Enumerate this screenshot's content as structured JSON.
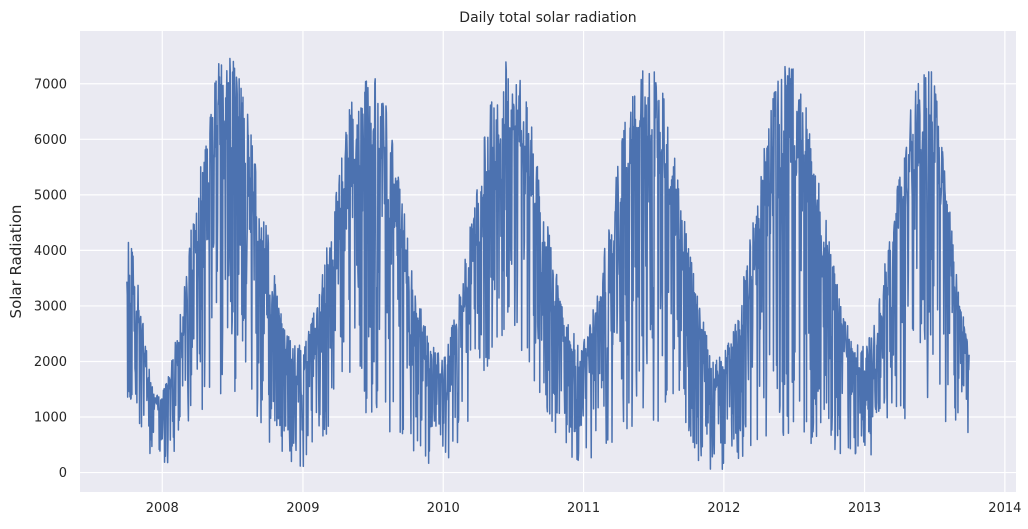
{
  "chart_data": {
    "type": "line",
    "title": "Daily total solar radiation",
    "xlabel": "",
    "ylabel": "Solar Radiation",
    "xlim": [
      "2007-06-01",
      "2014-01-30"
    ],
    "ylim": [
      -350,
      7950
    ],
    "x_ticks": [
      "2008",
      "2009",
      "2010",
      "2011",
      "2012",
      "2013",
      "2014"
    ],
    "y_ticks": [
      0,
      1000,
      2000,
      3000,
      4000,
      5000,
      6000,
      7000
    ],
    "grid": true,
    "legend": "none",
    "series": [
      {
        "name": "",
        "color": "#4c72b0",
        "x_start": "2007-10-01",
        "x_end": "2013-09-30",
        "sampling": "daily",
        "seasonal_envelope": {
          "x": [
            "2007-10-01",
            "2007-12-20",
            "2008-06-15",
            "2008-12-20",
            "2009-06-20",
            "2009-12-20",
            "2010-06-20",
            "2010-12-20",
            "2011-06-15",
            "2011-12-20",
            "2012-06-15",
            "2012-12-20",
            "2013-06-15",
            "2013-09-30"
          ],
          "upper": [
            4200,
            1400,
            7550,
            2300,
            7400,
            2200,
            7450,
            2500,
            7500,
            2100,
            7350,
            2300,
            7300,
            2600
          ],
          "lower": [
            1300,
            100,
            1400,
            100,
            900,
            100,
            2200,
            200,
            900,
            0,
            600,
            200,
            1100,
            500
          ]
        }
      }
    ]
  },
  "colors": {
    "background": "#ffffff",
    "plot_area": "#eaeaf2",
    "grid": "#ffffff",
    "line": "#4c72b0",
    "text": "#262626"
  }
}
